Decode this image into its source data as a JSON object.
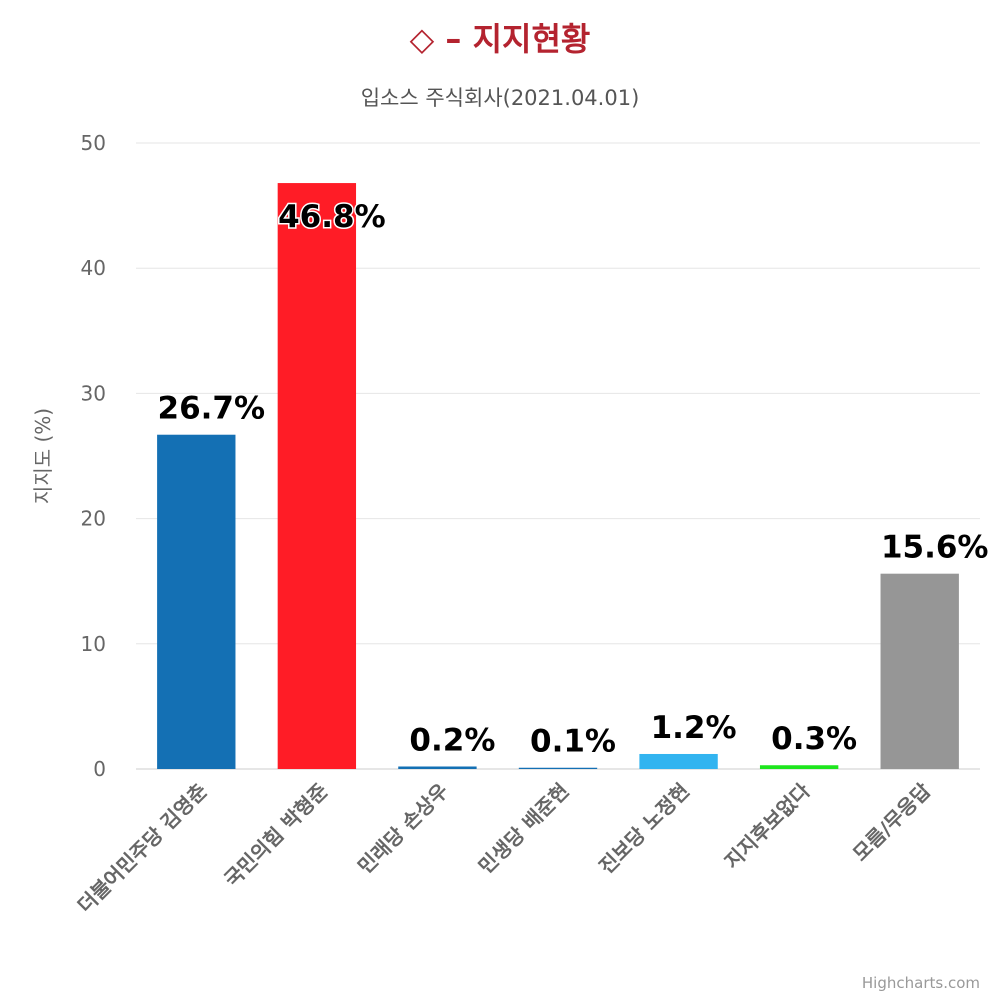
{
  "header": {
    "title_icon": "◇",
    "title": "– 지지현황",
    "subtitle": "입소스 주식회사(2021.04.01)"
  },
  "credits": "Highcharts.com",
  "chart_data": {
    "type": "bar",
    "title": "◇ – 지지현황",
    "subtitle": "입소스 주식회사(2021.04.01)",
    "xlabel": "",
    "ylabel": "지지도 (%)",
    "ylim": [
      0,
      50
    ],
    "yticks": [
      0,
      10,
      20,
      30,
      40,
      50
    ],
    "grid": true,
    "legend": "none",
    "categories": [
      "더불어민주당 김영춘",
      "국민의힘 박형준",
      "민래당 손상우",
      "민생당 배준현",
      "진보당 노정현",
      "지지후보없다",
      "모름/무응답"
    ],
    "values": [
      26.7,
      46.8,
      0.2,
      0.1,
      1.2,
      0.3,
      15.6
    ],
    "data_labels": [
      "26.7%",
      "46.8%",
      "0.2%",
      "0.1%",
      "1.2%",
      "0.3%",
      "15.6%"
    ],
    "colors": [
      "#1470b4",
      "#ff1c26",
      "#1470b4",
      "#1470b4",
      "#32b4f0",
      "#1ee61e",
      "#969696"
    ]
  }
}
